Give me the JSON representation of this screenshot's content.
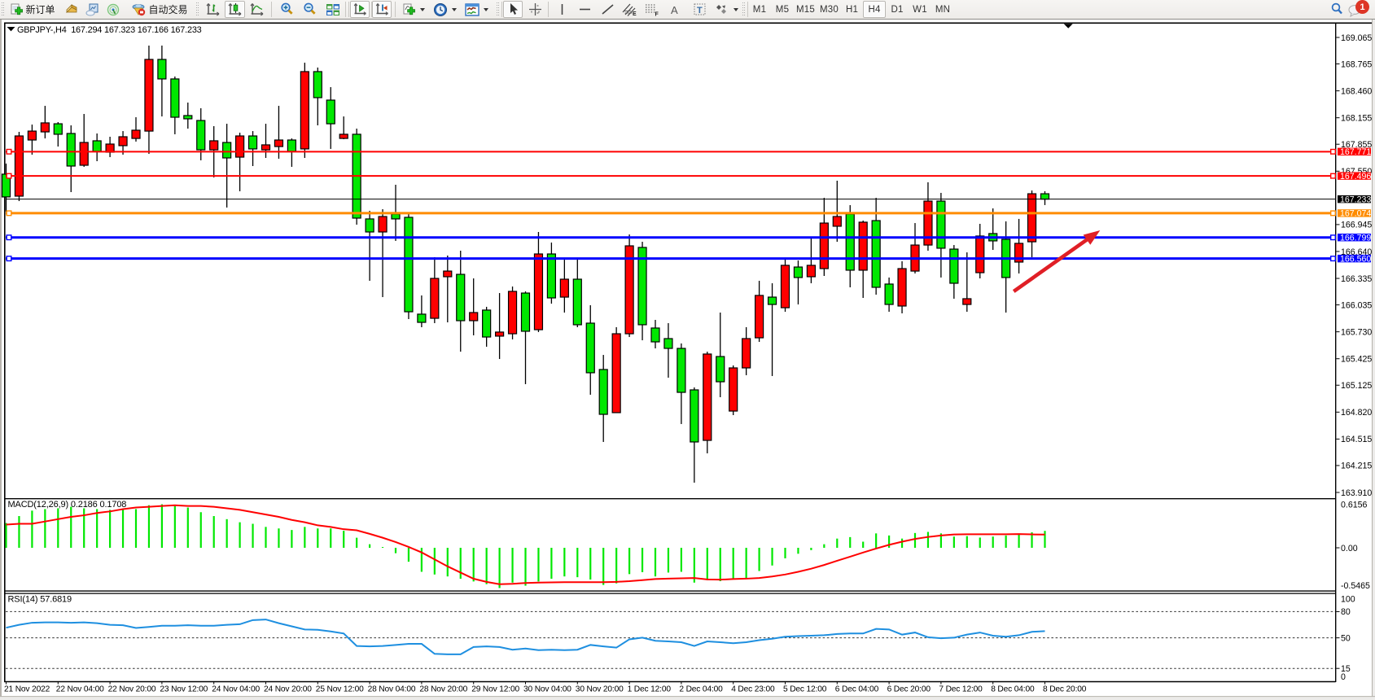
{
  "toolbar": {
    "new_order_label": "新订单",
    "autotrading_label": "自动交易",
    "timeframes": [
      "M1",
      "M5",
      "M15",
      "M30",
      "H1",
      "H4",
      "D1",
      "W1",
      "MN"
    ],
    "active_timeframe": "H4",
    "active_chart_type": "candlesticks",
    "active_cursor_tool": "cursor",
    "chat_badge_count": "1"
  },
  "chart": {
    "title_text": "GBPJPY-,H4  167.294 167.323 167.166 167.233",
    "symbol": "GBPJPY-",
    "period": "H4"
  },
  "chart_data": {
    "type": "candlestick",
    "symbol": "GBPJPY-",
    "timeframe": "H4",
    "quote": {
      "open": 167.294,
      "high": 167.323,
      "low": 167.166,
      "close": 167.233
    },
    "bull_color": "#ff0000",
    "bear_color": "#00e800",
    "wick_color": "#000000",
    "price_axis": {
      "ticks": [
        "169.065",
        "168.765",
        "168.460",
        "168.155",
        "167.855",
        "167.550",
        "166.945",
        "166.640",
        "166.335",
        "166.035",
        "165.730",
        "165.425",
        "165.125",
        "164.820",
        "164.515",
        "164.215",
        "163.910"
      ],
      "min_label": "163.910",
      "max_label": "169.065"
    },
    "time_axis": {
      "labels": [
        "21 Nov 2022",
        "22 Nov 04:00",
        "22 Nov 20:00",
        "23 Nov 12:00",
        "24 Nov 04:00",
        "24 Nov 20:00",
        "25 Nov 12:00",
        "28 Nov 04:00",
        "28 Nov 20:00",
        "29 Nov 12:00",
        "30 Nov 04:00",
        "30 Nov 20:00",
        "1 Dec 12:00",
        "2 Dec 04:00",
        "4 Dec 23:00",
        "5 Dec 12:00",
        "6 Dec 04:00",
        "6 Dec 20:00",
        "7 Dec 12:00",
        "8 Dec 04:00",
        "8 Dec 20:00"
      ],
      "label_every_n_candles": 4
    },
    "candles": [
      {
        "o": 167.516,
        "h": 167.636,
        "l": 167.092,
        "c": 167.258
      },
      {
        "o": 167.267,
        "h": 167.995,
        "l": 167.211,
        "c": 167.949
      },
      {
        "o": 167.903,
        "h": 168.078,
        "l": 167.737,
        "c": 168.004
      },
      {
        "o": 167.995,
        "h": 168.29,
        "l": 167.921,
        "c": 168.097
      },
      {
        "o": 168.087,
        "h": 168.106,
        "l": 167.829,
        "c": 167.968
      },
      {
        "o": 167.977,
        "h": 168.069,
        "l": 167.313,
        "c": 167.608
      },
      {
        "o": 167.617,
        "h": 168.198,
        "l": 167.599,
        "c": 167.875
      },
      {
        "o": 167.894,
        "h": 167.977,
        "l": 167.663,
        "c": 167.774
      },
      {
        "o": 167.765,
        "h": 167.94,
        "l": 167.709,
        "c": 167.857
      },
      {
        "o": 167.839,
        "h": 168.004,
        "l": 167.737,
        "c": 167.94
      },
      {
        "o": 167.921,
        "h": 168.161,
        "l": 167.885,
        "c": 168.014
      },
      {
        "o": 168.004,
        "h": 168.973,
        "l": 167.746,
        "c": 168.816
      },
      {
        "o": 168.816,
        "h": 168.973,
        "l": 168.17,
        "c": 168.595
      },
      {
        "o": 168.595,
        "h": 168.622,
        "l": 167.968,
        "c": 168.161
      },
      {
        "o": 168.18,
        "h": 168.327,
        "l": 168.032,
        "c": 168.143
      },
      {
        "o": 168.124,
        "h": 168.263,
        "l": 167.673,
        "c": 167.792
      },
      {
        "o": 167.792,
        "h": 168.06,
        "l": 167.479,
        "c": 167.894
      },
      {
        "o": 167.875,
        "h": 168.087,
        "l": 167.138,
        "c": 167.7
      },
      {
        "o": 167.709,
        "h": 167.986,
        "l": 167.322,
        "c": 167.949
      },
      {
        "o": 167.949,
        "h": 168.004,
        "l": 167.608,
        "c": 167.802
      },
      {
        "o": 167.792,
        "h": 168.087,
        "l": 167.7,
        "c": 167.848
      },
      {
        "o": 167.829,
        "h": 168.29,
        "l": 167.691,
        "c": 167.903
      },
      {
        "o": 167.903,
        "h": 167.921,
        "l": 167.599,
        "c": 167.774
      },
      {
        "o": 167.802,
        "h": 168.779,
        "l": 167.7,
        "c": 168.678
      },
      {
        "o": 168.678,
        "h": 168.724,
        "l": 168.069,
        "c": 168.383
      },
      {
        "o": 168.355,
        "h": 168.502,
        "l": 167.802,
        "c": 168.087
      },
      {
        "o": 167.921,
        "h": 168.17,
        "l": 167.912,
        "c": 167.968
      },
      {
        "o": 167.968,
        "h": 168.032,
        "l": 166.944,
        "c": 167.018
      },
      {
        "o": 167.009,
        "h": 167.101,
        "l": 166.308,
        "c": 166.861
      },
      {
        "o": 166.861,
        "h": 167.119,
        "l": 166.123,
        "c": 167.036
      },
      {
        "o": 167.064,
        "h": 167.396,
        "l": 166.76,
        "c": 167.009
      },
      {
        "o": 167.027,
        "h": 167.082,
        "l": 165.874,
        "c": 165.957
      },
      {
        "o": 165.93,
        "h": 166.142,
        "l": 165.782,
        "c": 165.837
      },
      {
        "o": 165.883,
        "h": 166.575,
        "l": 165.828,
        "c": 166.335
      },
      {
        "o": 166.354,
        "h": 166.594,
        "l": 165.837,
        "c": 166.418
      },
      {
        "o": 166.381,
        "h": 166.649,
        "l": 165.505,
        "c": 165.856
      },
      {
        "o": 165.856,
        "h": 166.335,
        "l": 165.69,
        "c": 165.948
      },
      {
        "o": 165.976,
        "h": 166.013,
        "l": 165.561,
        "c": 165.671
      },
      {
        "o": 165.681,
        "h": 166.169,
        "l": 165.422,
        "c": 165.727
      },
      {
        "o": 165.708,
        "h": 166.243,
        "l": 165.644,
        "c": 166.188
      },
      {
        "o": 166.169,
        "h": 166.188,
        "l": 165.137,
        "c": 165.736
      },
      {
        "o": 165.754,
        "h": 166.861,
        "l": 165.727,
        "c": 166.612
      },
      {
        "o": 166.612,
        "h": 166.741,
        "l": 166.049,
        "c": 166.114
      },
      {
        "o": 166.123,
        "h": 166.547,
        "l": 165.948,
        "c": 166.326
      },
      {
        "o": 166.326,
        "h": 166.557,
        "l": 165.782,
        "c": 165.81
      },
      {
        "o": 165.828,
        "h": 166.031,
        "l": 165.017,
        "c": 165.266
      },
      {
        "o": 165.303,
        "h": 165.468,
        "l": 164.482,
        "c": 164.795
      },
      {
        "o": 164.814,
        "h": 165.782,
        "l": 164.814,
        "c": 165.708
      },
      {
        "o": 165.708,
        "h": 166.833,
        "l": 165.671,
        "c": 166.704
      },
      {
        "o": 166.686,
        "h": 166.75,
        "l": 165.634,
        "c": 165.81
      },
      {
        "o": 165.773,
        "h": 165.865,
        "l": 165.542,
        "c": 165.616
      },
      {
        "o": 165.653,
        "h": 165.828,
        "l": 165.21,
        "c": 165.542
      },
      {
        "o": 165.542,
        "h": 165.598,
        "l": 164.685,
        "c": 165.044
      },
      {
        "o": 165.072,
        "h": 165.1,
        "l": 164.021,
        "c": 164.482
      },
      {
        "o": 164.5,
        "h": 165.505,
        "l": 164.353,
        "c": 165.478
      },
      {
        "o": 165.45,
        "h": 165.948,
        "l": 164.989,
        "c": 165.164
      },
      {
        "o": 164.832,
        "h": 165.349,
        "l": 164.786,
        "c": 165.321
      },
      {
        "o": 165.321,
        "h": 165.782,
        "l": 165.238,
        "c": 165.653
      },
      {
        "o": 165.662,
        "h": 166.308,
        "l": 165.616,
        "c": 166.142
      },
      {
        "o": 166.123,
        "h": 166.28,
        "l": 165.229,
        "c": 166.04
      },
      {
        "o": 166.003,
        "h": 166.557,
        "l": 165.957,
        "c": 166.483
      },
      {
        "o": 166.464,
        "h": 166.538,
        "l": 166.04,
        "c": 166.345
      },
      {
        "o": 166.354,
        "h": 166.796,
        "l": 166.28,
        "c": 166.483
      },
      {
        "o": 166.446,
        "h": 167.248,
        "l": 166.363,
        "c": 166.962
      },
      {
        "o": 166.926,
        "h": 167.442,
        "l": 166.75,
        "c": 167.036
      },
      {
        "o": 167.064,
        "h": 167.165,
        "l": 166.234,
        "c": 166.428
      },
      {
        "o": 166.428,
        "h": 166.99,
        "l": 166.114,
        "c": 166.972
      },
      {
        "o": 166.99,
        "h": 167.248,
        "l": 166.151,
        "c": 166.234
      },
      {
        "o": 166.271,
        "h": 166.345,
        "l": 165.957,
        "c": 166.04
      },
      {
        "o": 166.022,
        "h": 166.529,
        "l": 165.939,
        "c": 166.446
      },
      {
        "o": 166.418,
        "h": 166.962,
        "l": 166.391,
        "c": 166.713
      },
      {
        "o": 166.713,
        "h": 167.424,
        "l": 166.649,
        "c": 167.211
      },
      {
        "o": 167.211,
        "h": 167.304,
        "l": 166.345,
        "c": 166.677
      },
      {
        "o": 166.667,
        "h": 166.713,
        "l": 166.105,
        "c": 166.28
      },
      {
        "o": 166.04,
        "h": 166.63,
        "l": 165.957,
        "c": 166.105
      },
      {
        "o": 166.4,
        "h": 166.953,
        "l": 166.335,
        "c": 166.815
      },
      {
        "o": 166.843,
        "h": 167.128,
        "l": 166.658,
        "c": 166.76
      },
      {
        "o": 166.778,
        "h": 166.981,
        "l": 165.948,
        "c": 166.345
      },
      {
        "o": 166.52,
        "h": 167.009,
        "l": 166.391,
        "c": 166.732
      },
      {
        "o": 166.75,
        "h": 167.331,
        "l": 166.575,
        "c": 167.294
      },
      {
        "o": 167.294,
        "h": 167.323,
        "l": 167.166,
        "c": 167.233
      }
    ],
    "hlines": [
      {
        "price": 167.771,
        "label": "167.771",
        "color": "#ff0000",
        "width": 2
      },
      {
        "price": 167.496,
        "label": "167.496",
        "color": "#ff0000",
        "width": 2
      },
      {
        "price": 167.074,
        "label": "167.074",
        "color": "#ff8c00",
        "width": 3
      },
      {
        "price": 166.799,
        "label": "166.799",
        "color": "#0000ff",
        "width": 3
      },
      {
        "price": 166.56,
        "label": "166.560",
        "color": "#0000ff",
        "width": 3
      }
    ],
    "bid_line": {
      "price": 167.233,
      "label": "167.233",
      "color": "#000000",
      "badge_bg": "#000000"
    },
    "macd": {
      "label_text": "MACD(12,26,9) 0.2186 0.1708",
      "name": "MACD",
      "params": "12,26,9",
      "current_macd": 0.2186,
      "current_signal": 0.1708,
      "scale_max_label": "0.6156",
      "scale_zero_label": "0.00",
      "scale_min_label": "-0.5465",
      "scale_max": 0.6156,
      "scale_min": -0.5465,
      "histogram_color": "#00e800",
      "signal_color": "#ff0000",
      "histogram": [
        0.32,
        0.41,
        0.48,
        0.5,
        0.51,
        0.53,
        0.51,
        0.5,
        0.49,
        0.5,
        0.5,
        0.55,
        0.562,
        0.54,
        0.52,
        0.46,
        0.41,
        0.37,
        0.33,
        0.31,
        0.27,
        0.25,
        0.23,
        0.27,
        0.25,
        0.25,
        0.22,
        0.13,
        0.046,
        0.01,
        -0.07,
        -0.18,
        -0.31,
        -0.345,
        -0.37,
        -0.4,
        -0.435,
        -0.47,
        -0.52,
        -0.45,
        -0.49,
        -0.435,
        -0.4,
        -0.37,
        -0.38,
        -0.41,
        -0.48,
        -0.46,
        -0.34,
        -0.315,
        -0.37,
        -0.32,
        -0.31,
        -0.45,
        -0.417,
        -0.431,
        -0.404,
        -0.39,
        -0.3,
        -0.229,
        -0.136,
        -0.077,
        -0.03,
        0.046,
        0.119,
        0.138,
        0.079,
        0.186,
        0.159,
        0.119,
        0.191,
        0.205,
        0.186,
        0.145,
        0.151,
        0.132,
        0.145,
        0.159,
        0.181,
        0.2,
        0.2186
      ],
      "signal": [
        0.3,
        0.31,
        0.31,
        0.34,
        0.37,
        0.4,
        0.42,
        0.45,
        0.47,
        0.5,
        0.52,
        0.53,
        0.54,
        0.55,
        0.54,
        0.54,
        0.53,
        0.51,
        0.49,
        0.46,
        0.43,
        0.4,
        0.36,
        0.33,
        0.29,
        0.27,
        0.24,
        0.226,
        0.18,
        0.13,
        0.074,
        0.011,
        -0.06,
        -0.15,
        -0.24,
        -0.32,
        -0.4,
        -0.44,
        -0.47,
        -0.465,
        -0.455,
        -0.45,
        -0.447,
        -0.445,
        -0.444,
        -0.444,
        -0.445,
        -0.44,
        -0.431,
        -0.418,
        -0.404,
        -0.399,
        -0.395,
        -0.39,
        -0.409,
        -0.412,
        -0.404,
        -0.399,
        -0.39,
        -0.371,
        -0.345,
        -0.31,
        -0.27,
        -0.222,
        -0.168,
        -0.115,
        -0.061,
        -0.01,
        0.038,
        0.079,
        0.114,
        0.14,
        0.159,
        0.172,
        0.175,
        0.175,
        0.175,
        0.175,
        0.178,
        0.173,
        0.1708
      ]
    },
    "rsi": {
      "label_text": "RSI(14) 57.6819",
      "name": "RSI",
      "period": 14,
      "current": 57.6819,
      "scale_labels": [
        "100",
        "80",
        "50",
        "15",
        "0"
      ],
      "levels": [
        80,
        50,
        15
      ],
      "line_color": "#1e8fe0",
      "values": [
        61.6,
        64.9,
        67.3,
        67.7,
        67.7,
        67.3,
        67.7,
        66.8,
        64.9,
        64.4,
        61.3,
        62.5,
        63.9,
        63.9,
        64.4,
        63.9,
        63.9,
        64.9,
        65.6,
        70.3,
        71.0,
        66.8,
        63.2,
        59.6,
        59.2,
        57.3,
        55.0,
        40.7,
        40.2,
        40.7,
        41.9,
        43.1,
        43.1,
        31.7,
        31.2,
        31.2,
        39.5,
        40.2,
        39.5,
        36.4,
        37.8,
        35.9,
        36.4,
        35.9,
        36.4,
        41.9,
        40.2,
        38.8,
        48.3,
        50.2,
        46.6,
        45.9,
        45.0,
        40.7,
        45.9,
        45.0,
        43.8,
        45.0,
        47.3,
        49.0,
        51.3,
        52.0,
        52.5,
        53.0,
        54.4,
        55.0,
        55.0,
        60.2,
        59.6,
        53.7,
        56.1,
        50.7,
        49.5,
        50.2,
        53.7,
        56.1,
        52.5,
        51.3,
        53.0,
        56.9,
        57.6819
      ]
    },
    "arrow_annotation": {
      "color": "#e01f26",
      "tail": {
        "index": 77.6,
        "price": 166.188
      },
      "head": {
        "index": 84.25,
        "price": 166.879
      }
    },
    "shift_marker_index": 81.8
  }
}
